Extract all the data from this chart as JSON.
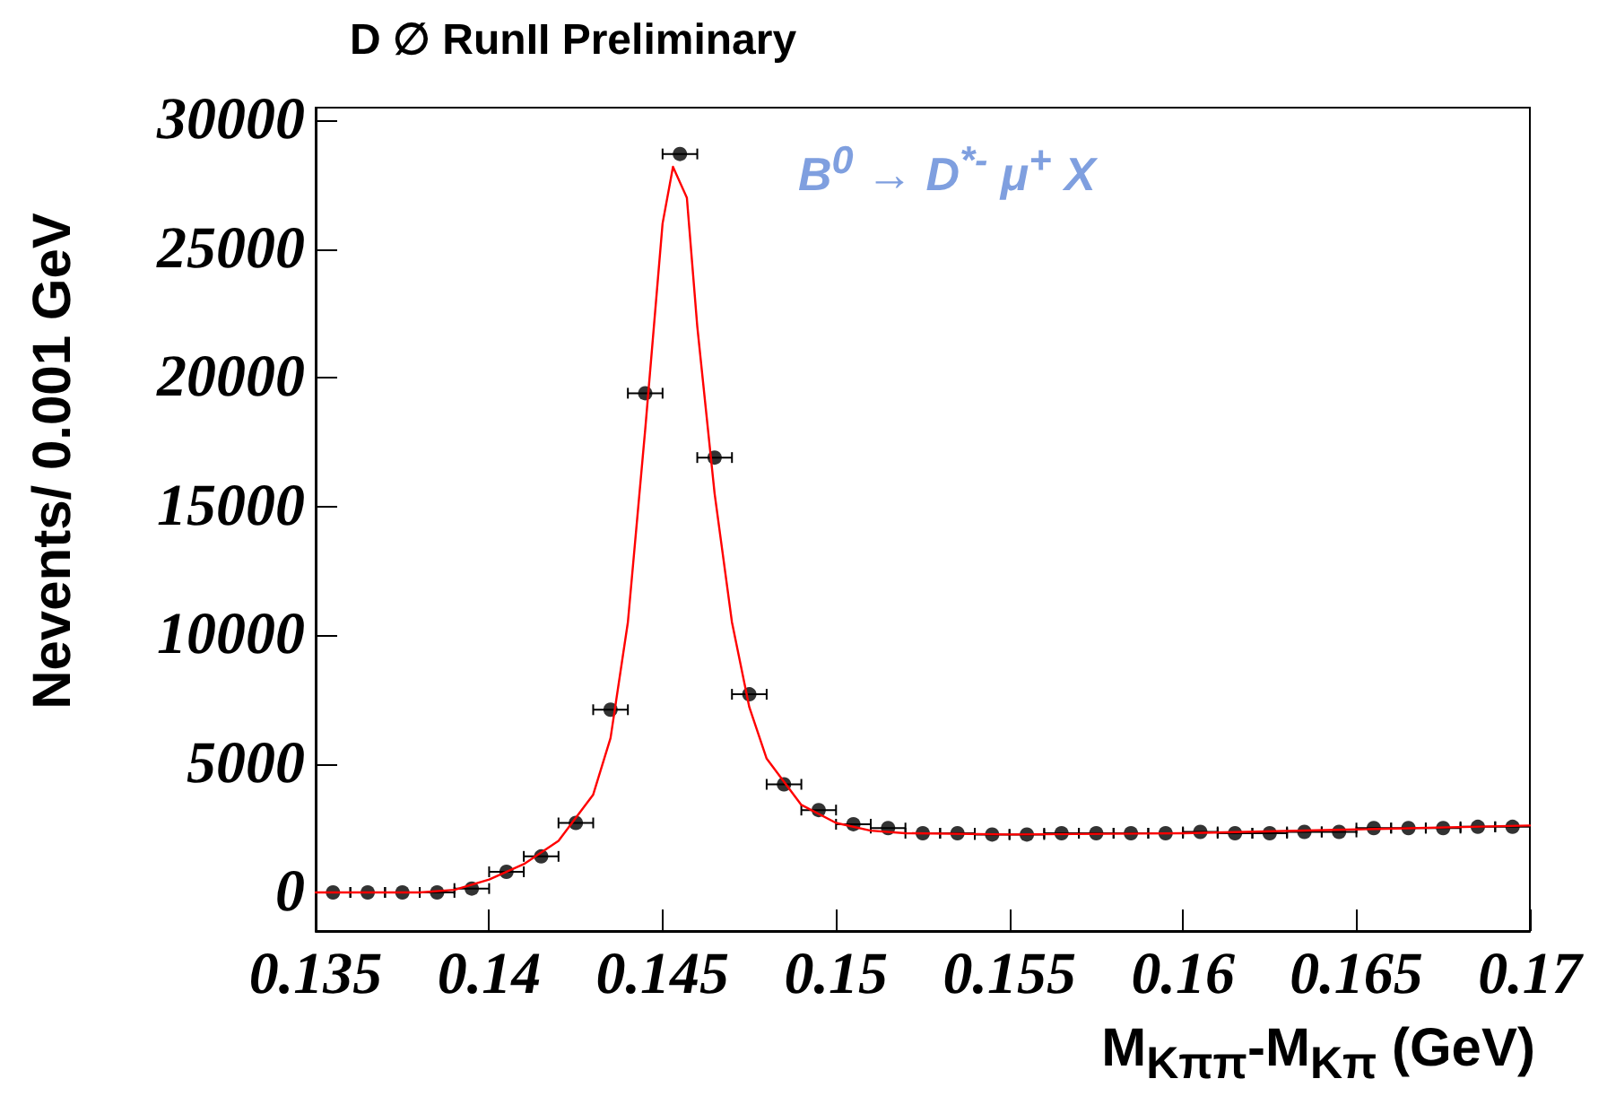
{
  "chart_data": {
    "type": "scatter",
    "title": "D ∅ RunII Preliminary",
    "xlabel": "M$_{Kππ}$-M$_{Kπ}$ (GeV)",
    "ylabel": "Nevents/ 0.001 GeV",
    "annotations": [
      "B$^{0}$ → D$^{*-}$ μ$^{+}$ X"
    ],
    "xlim": [
      0.135,
      0.17
    ],
    "xticks": [
      0.135,
      0.14,
      0.145,
      0.15,
      0.155,
      0.16,
      0.165,
      0.17
    ],
    "ylim": [
      -1500,
      30500
    ],
    "yticks": [
      0,
      5000,
      10000,
      15000,
      20000,
      25000,
      30000
    ],
    "marker": "circle",
    "series": [
      {
        "color": "#000000",
        "x": [
          0.1355,
          0.1365,
          0.1375,
          0.1385,
          0.1395,
          0.1405,
          0.1415,
          0.1425,
          0.1435,
          0.1445,
          0.1455,
          0.1465,
          0.1475,
          0.1485,
          0.1495,
          0.1505,
          0.1515,
          0.1525,
          0.1535,
          0.1545,
          0.1555,
          0.1565,
          0.1575,
          0.1585,
          0.1595,
          0.1605,
          0.1615,
          0.1625,
          0.1635,
          0.1645,
          0.1655,
          0.1665,
          0.1675,
          0.1685,
          0.1695
        ],
        "values": [
          0,
          0,
          0,
          0,
          150,
          800,
          1400,
          2700,
          7100,
          19400,
          28700,
          16900,
          7700,
          4200,
          3200,
          2650,
          2500,
          2300,
          2300,
          2250,
          2250,
          2300,
          2300,
          2300,
          2300,
          2350,
          2300,
          2300,
          2350,
          2350,
          2500,
          2500,
          2500,
          2550,
          2550
        ],
        "xerrors": [
          0.0005,
          0.0005,
          0.0005,
          0.0005,
          0.0005,
          0.0005,
          0.0005,
          0.0005,
          0.0005,
          0.0005,
          0.0005,
          0.0005,
          0.0005,
          0.0005,
          0.0005,
          0.0005,
          0.0005,
          0.0005,
          0.0005,
          0.0005,
          0.0005,
          0.0005,
          0.0005,
          0.0005,
          0.0005,
          0.0005,
          0.0005,
          0.0005,
          0.0005,
          0.0005,
          0.0005,
          0.0005,
          0.0005,
          0.0005,
          0.0005
        ]
      },
      {
        "type": "line",
        "color": "#ff0000",
        "marker": "none",
        "line_style": "solid",
        "x": [
          0.135,
          0.138,
          0.139,
          0.14,
          0.141,
          0.142,
          0.143,
          0.1435,
          0.144,
          0.1445,
          0.145,
          0.1453,
          0.1457,
          0.146,
          0.1465,
          0.147,
          0.1475,
          0.148,
          0.149,
          0.15,
          0.151,
          0.152,
          0.155,
          0.16,
          0.165,
          0.17
        ],
        "values": [
          0,
          0,
          100,
          500,
          1100,
          2000,
          3800,
          6000,
          10500,
          18000,
          26000,
          28200,
          27000,
          22000,
          15500,
          10500,
          7200,
          5200,
          3400,
          2700,
          2400,
          2300,
          2250,
          2300,
          2450,
          2600
        ]
      }
    ]
  }
}
